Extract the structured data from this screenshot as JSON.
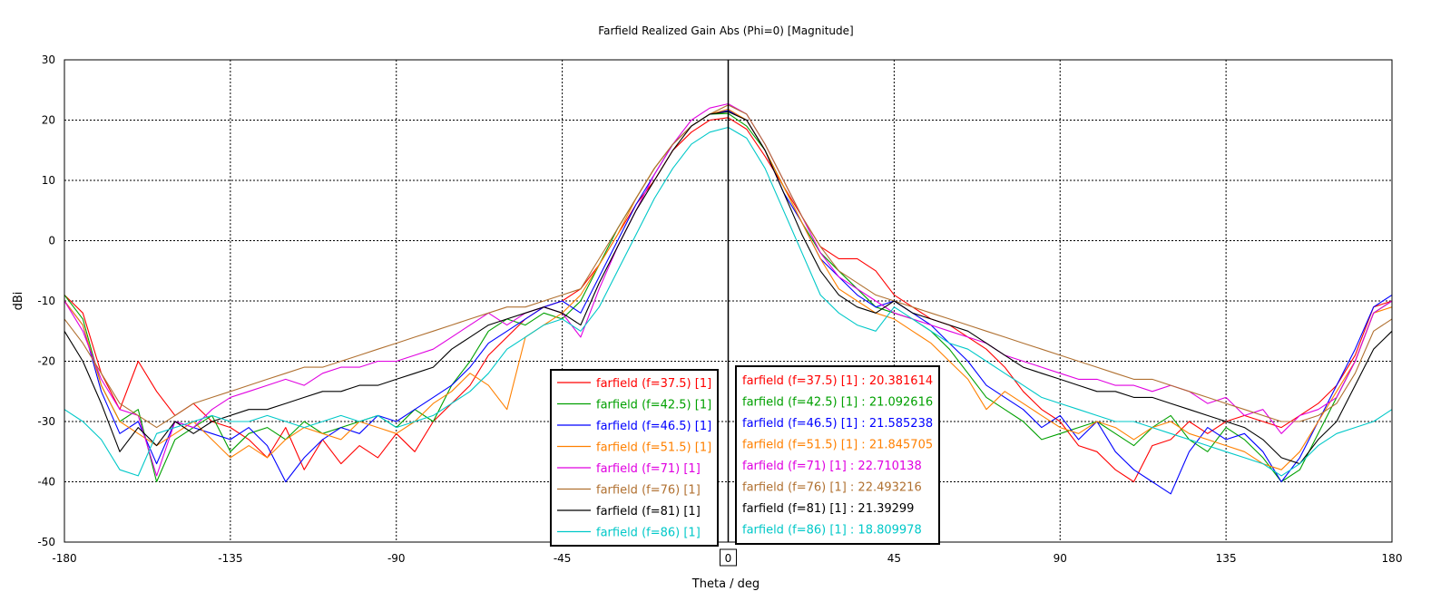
{
  "chart_data": {
    "type": "line",
    "title": "Farfield Realized Gain Abs (Phi=0) [Magnitude]",
    "xlabel": "Theta / deg",
    "ylabel": "dBi",
    "xlim": [
      -180,
      180
    ],
    "ylim": [
      -50,
      30
    ],
    "xticks": [
      -180,
      -135,
      -90,
      -45,
      0,
      45,
      90,
      135,
      180
    ],
    "yticks": [
      -50,
      -40,
      -30,
      -20,
      -10,
      0,
      10,
      20,
      30
    ],
    "xtick_labels": [
      "-180",
      "-135",
      "-90",
      "-45",
      "0",
      "45",
      "90",
      "135",
      "180"
    ],
    "ytick_labels": [
      "-50",
      "-40",
      "-30",
      "-20",
      "-10",
      "0",
      "10",
      "20",
      "30"
    ],
    "highlighted_x": 0,
    "grid": true,
    "legend_placement": "bottom-center",
    "series": [
      {
        "name": "farfield (f=37.5) [1]",
        "marker_label": "farfield (f=37.5) [1] : 20.381614",
        "color": "#ff0000",
        "x": [
          -180,
          -175,
          -170,
          -165,
          -160,
          -155,
          -150,
          -145,
          -140,
          -135,
          -130,
          -125,
          -120,
          -115,
          -110,
          -105,
          -100,
          -95,
          -90,
          -85,
          -80,
          -75,
          -70,
          -65,
          -60,
          -55,
          -50,
          -45,
          -40,
          -35,
          -30,
          -25,
          -20,
          -15,
          -10,
          -5,
          0,
          5,
          10,
          15,
          20,
          25,
          30,
          35,
          40,
          45,
          50,
          55,
          60,
          65,
          70,
          75,
          80,
          85,
          90,
          95,
          100,
          105,
          110,
          115,
          120,
          125,
          130,
          135,
          140,
          145,
          150,
          155,
          160,
          165,
          170,
          175,
          180
        ],
        "y": [
          -9,
          -12,
          -22,
          -28,
          -20,
          -25,
          -29,
          -27,
          -30,
          -31,
          -33,
          -36,
          -31,
          -38,
          -33,
          -37,
          -34,
          -36,
          -32,
          -35,
          -30,
          -27,
          -24,
          -19,
          -16,
          -13,
          -11,
          -10,
          -8,
          -4,
          1,
          6,
          10,
          15,
          18,
          20,
          20.4,
          18.5,
          14,
          9,
          4,
          -1,
          -3,
          -3,
          -5,
          -9,
          -11,
          -13,
          -14,
          -16,
          -18,
          -21,
          -25,
          -28,
          -30,
          -34,
          -35,
          -38,
          -40,
          -34,
          -33,
          -30,
          -32,
          -30,
          -29,
          -30,
          -31,
          -29,
          -27,
          -24,
          -19,
          -11,
          -10
        ]
      },
      {
        "name": "farfield (f=42.5) [1]",
        "marker_label": "farfield (f=42.5) [1] : 21.092616",
        "color": "#00a000",
        "x": [
          -180,
          -175,
          -170,
          -165,
          -160,
          -155,
          -150,
          -145,
          -140,
          -135,
          -130,
          -125,
          -120,
          -115,
          -110,
          -105,
          -100,
          -95,
          -90,
          -85,
          -80,
          -75,
          -70,
          -65,
          -60,
          -55,
          -50,
          -45,
          -40,
          -35,
          -30,
          -25,
          -20,
          -15,
          -10,
          -5,
          0,
          5,
          10,
          15,
          20,
          25,
          30,
          35,
          40,
          45,
          50,
          55,
          60,
          65,
          70,
          75,
          80,
          85,
          90,
          95,
          100,
          105,
          110,
          115,
          120,
          125,
          130,
          135,
          140,
          145,
          150,
          155,
          160,
          165,
          170,
          175,
          180
        ],
        "y": [
          -9,
          -13,
          -24,
          -30,
          -28,
          -40,
          -33,
          -31,
          -29,
          -35,
          -32,
          -31,
          -33,
          -30,
          -32,
          -31,
          -30,
          -29,
          -31,
          -28,
          -30,
          -24,
          -20,
          -15,
          -13,
          -14,
          -12,
          -13,
          -10,
          -4,
          2,
          7,
          12,
          16,
          19,
          21,
          21.1,
          19,
          15,
          9,
          3,
          -2,
          -5,
          -8,
          -11,
          -12,
          -13,
          -15,
          -18,
          -22,
          -26,
          -28,
          -30,
          -33,
          -32,
          -31,
          -30,
          -32,
          -34,
          -31,
          -29,
          -33,
          -35,
          -31,
          -33,
          -36,
          -40,
          -38,
          -32,
          -26,
          -20,
          -12,
          -10
        ]
      },
      {
        "name": "farfield (f=46.5) [1]",
        "marker_label": "farfield (f=46.5) [1] : 21.585238",
        "color": "#0000ff",
        "x": [
          -180,
          -175,
          -170,
          -165,
          -160,
          -155,
          -150,
          -145,
          -140,
          -135,
          -130,
          -125,
          -120,
          -115,
          -110,
          -105,
          -100,
          -95,
          -90,
          -85,
          -80,
          -75,
          -70,
          -65,
          -60,
          -55,
          -50,
          -45,
          -40,
          -35,
          -30,
          -25,
          -20,
          -15,
          -10,
          -5,
          0,
          5,
          10,
          15,
          20,
          25,
          30,
          35,
          40,
          45,
          50,
          55,
          60,
          65,
          70,
          75,
          80,
          85,
          90,
          95,
          100,
          105,
          110,
          115,
          120,
          125,
          130,
          135,
          140,
          145,
          150,
          155,
          160,
          165,
          170,
          175,
          180
        ],
        "y": [
          -10,
          -14,
          -25,
          -32,
          -30,
          -37,
          -30,
          -31,
          -32,
          -33,
          -31,
          -34,
          -40,
          -36,
          -33,
          -31,
          -32,
          -29,
          -30,
          -28,
          -26,
          -24,
          -21,
          -17,
          -15,
          -13,
          -11,
          -10,
          -12,
          -6,
          0,
          6,
          11,
          16,
          19,
          21,
          21.6,
          20,
          15,
          8,
          3,
          -3,
          -6,
          -9,
          -11,
          -10,
          -12,
          -14,
          -17,
          -20,
          -24,
          -26,
          -28,
          -31,
          -29,
          -33,
          -30,
          -35,
          -38,
          -40,
          -42,
          -35,
          -31,
          -33,
          -32,
          -35,
          -40,
          -36,
          -30,
          -24,
          -18,
          -11,
          -9
        ]
      },
      {
        "name": "farfield (f=51.5) [1]",
        "marker_label": "farfield (f=51.5) [1] : 21.845705",
        "color": "#ff8000",
        "x": [
          -180,
          -175,
          -170,
          -165,
          -160,
          -155,
          -150,
          -145,
          -140,
          -135,
          -130,
          -125,
          -120,
          -115,
          -110,
          -105,
          -100,
          -95,
          -90,
          -85,
          -80,
          -75,
          -70,
          -65,
          -60,
          -55,
          -50,
          -45,
          -40,
          -35,
          -30,
          -25,
          -20,
          -15,
          -10,
          -5,
          0,
          5,
          10,
          15,
          20,
          25,
          30,
          35,
          40,
          45,
          50,
          55,
          60,
          65,
          70,
          75,
          80,
          85,
          90,
          95,
          100,
          105,
          110,
          115,
          120,
          125,
          130,
          135,
          140,
          145,
          150,
          155,
          160,
          165,
          170,
          175,
          180
        ],
        "y": [
          -10,
          -14,
          -24,
          -30,
          -32,
          -34,
          -32,
          -30,
          -33,
          -36,
          -34,
          -36,
          -33,
          -31,
          -32,
          -33,
          -30,
          -31,
          -32,
          -30,
          -27,
          -25,
          -22,
          -24,
          -28,
          -16,
          -14,
          -12,
          -9,
          -4,
          1,
          7,
          12,
          16,
          19,
          21,
          21.8,
          20,
          15,
          9,
          3,
          -3,
          -8,
          -10,
          -12,
          -13,
          -15,
          -17,
          -20,
          -23,
          -28,
          -25,
          -27,
          -29,
          -31,
          -32,
          -30,
          -31,
          -33,
          -31,
          -30,
          -32,
          -33,
          -34,
          -35,
          -37,
          -38,
          -35,
          -30,
          -25,
          -20,
          -12,
          -11
        ]
      },
      {
        "name": "farfield (f=71) [1]",
        "marker_label": "farfield (f=71) [1] : 22.710138",
        "color": "#e000e0",
        "x": [
          -180,
          -175,
          -170,
          -165,
          -160,
          -155,
          -150,
          -145,
          -140,
          -135,
          -130,
          -125,
          -120,
          -115,
          -110,
          -105,
          -100,
          -95,
          -90,
          -85,
          -80,
          -75,
          -70,
          -65,
          -60,
          -55,
          -50,
          -45,
          -40,
          -35,
          -30,
          -25,
          -20,
          -15,
          -10,
          -5,
          0,
          5,
          10,
          15,
          20,
          25,
          30,
          35,
          40,
          45,
          50,
          55,
          60,
          65,
          70,
          75,
          80,
          85,
          90,
          95,
          100,
          105,
          110,
          115,
          120,
          125,
          130,
          135,
          140,
          145,
          150,
          155,
          160,
          165,
          170,
          175,
          180
        ],
        "y": [
          -10,
          -15,
          -23,
          -28,
          -29,
          -39,
          -30,
          -31,
          -28,
          -26,
          -25,
          -24,
          -23,
          -24,
          -22,
          -21,
          -21,
          -20,
          -20,
          -19,
          -18,
          -16,
          -14,
          -12,
          -14,
          -12,
          -11,
          -12,
          -16,
          -8,
          -1,
          5,
          11,
          16,
          20,
          22,
          22.7,
          21,
          16,
          10,
          4,
          -2,
          -6,
          -8,
          -10,
          -12,
          -13,
          -14,
          -15,
          -16,
          -17,
          -19,
          -20,
          -21,
          -22,
          -23,
          -23,
          -24,
          -24,
          -25,
          -24,
          -25,
          -27,
          -26,
          -29,
          -28,
          -32,
          -29,
          -28,
          -26,
          -20,
          -12,
          -10
        ]
      },
      {
        "name": "farfield (f=76) [1]",
        "marker_label": "farfield (f=76) [1] : 22.493216",
        "color": "#b07030",
        "x": [
          -180,
          -175,
          -170,
          -165,
          -160,
          -155,
          -150,
          -145,
          -140,
          -135,
          -130,
          -125,
          -120,
          -115,
          -110,
          -105,
          -100,
          -95,
          -90,
          -85,
          -80,
          -75,
          -70,
          -65,
          -60,
          -55,
          -50,
          -45,
          -40,
          -35,
          -30,
          -25,
          -20,
          -15,
          -10,
          -5,
          0,
          5,
          10,
          15,
          20,
          25,
          30,
          35,
          40,
          45,
          50,
          55,
          60,
          65,
          70,
          75,
          80,
          85,
          90,
          95,
          100,
          105,
          110,
          115,
          120,
          125,
          130,
          135,
          140,
          145,
          150,
          155,
          160,
          165,
          170,
          175,
          180
        ],
        "y": [
          -13,
          -17,
          -22,
          -27,
          -29,
          -31,
          -29,
          -27,
          -26,
          -25,
          -24,
          -23,
          -22,
          -21,
          -21,
          -20,
          -19,
          -18,
          -17,
          -16,
          -15,
          -14,
          -13,
          -12,
          -11,
          -11,
          -10,
          -9,
          -8,
          -3,
          2,
          7,
          12,
          16,
          19,
          21,
          22.5,
          21,
          16,
          10,
          4,
          -1,
          -5,
          -7,
          -9,
          -10,
          -11,
          -12,
          -13,
          -14,
          -15,
          -16,
          -17,
          -18,
          -19,
          -20,
          -21,
          -22,
          -23,
          -23,
          -24,
          -25,
          -26,
          -27,
          -28,
          -29,
          -30,
          -30,
          -29,
          -27,
          -22,
          -15,
          -13
        ]
      },
      {
        "name": "farfield (f=81) [1]",
        "marker_label": "farfield (f=81) [1] : 21.39299",
        "color": "#000000",
        "x": [
          -180,
          -175,
          -170,
          -165,
          -160,
          -155,
          -150,
          -145,
          -140,
          -135,
          -130,
          -125,
          -120,
          -115,
          -110,
          -105,
          -100,
          -95,
          -90,
          -85,
          -80,
          -75,
          -70,
          -65,
          -60,
          -55,
          -50,
          -45,
          -40,
          -35,
          -30,
          -25,
          -20,
          -15,
          -10,
          -5,
          0,
          5,
          10,
          15,
          20,
          25,
          30,
          35,
          40,
          45,
          50,
          55,
          60,
          65,
          70,
          75,
          80,
          85,
          90,
          95,
          100,
          105,
          110,
          115,
          120,
          125,
          130,
          135,
          140,
          145,
          150,
          155,
          160,
          165,
          170,
          175,
          180
        ],
        "y": [
          -15,
          -20,
          -27,
          -35,
          -31,
          -34,
          -30,
          -32,
          -30,
          -29,
          -28,
          -28,
          -27,
          -26,
          -25,
          -25,
          -24,
          -24,
          -23,
          -22,
          -21,
          -18,
          -16,
          -14,
          -13,
          -12,
          -11,
          -12,
          -14,
          -7,
          -1,
          5,
          10,
          15,
          19,
          21,
          21.4,
          20,
          15,
          8,
          1,
          -5,
          -9,
          -11,
          -12,
          -10,
          -12,
          -13,
          -14,
          -15,
          -17,
          -19,
          -21,
          -22,
          -23,
          -24,
          -25,
          -25,
          -26,
          -26,
          -27,
          -28,
          -29,
          -30,
          -31,
          -33,
          -36,
          -37,
          -33,
          -30,
          -24,
          -18,
          -15
        ]
      },
      {
        "name": "farfield (f=86) [1]",
        "marker_label": "farfield (f=86) [1] : 18.809978",
        "color": "#00c8c8",
        "x": [
          -180,
          -175,
          -170,
          -165,
          -160,
          -155,
          -150,
          -145,
          -140,
          -135,
          -130,
          -125,
          -120,
          -115,
          -110,
          -105,
          -100,
          -95,
          -90,
          -85,
          -80,
          -75,
          -70,
          -65,
          -60,
          -55,
          -50,
          -45,
          -40,
          -35,
          -30,
          -25,
          -20,
          -15,
          -10,
          -5,
          0,
          5,
          10,
          15,
          20,
          25,
          30,
          35,
          40,
          45,
          50,
          55,
          60,
          65,
          70,
          75,
          80,
          85,
          90,
          95,
          100,
          105,
          110,
          115,
          120,
          125,
          130,
          135,
          140,
          145,
          150,
          155,
          160,
          165,
          170,
          175,
          180
        ],
        "y": [
          -28,
          -30,
          -33,
          -38,
          -39,
          -32,
          -31,
          -30,
          -29,
          -30,
          -30,
          -29,
          -30,
          -31,
          -30,
          -29,
          -30,
          -29,
          -31,
          -30,
          -29,
          -27,
          -25,
          -22,
          -18,
          -16,
          -14,
          -13,
          -15,
          -11,
          -5,
          1,
          7,
          12,
          16,
          18,
          18.8,
          17,
          12,
          5,
          -2,
          -9,
          -12,
          -14,
          -15,
          -11,
          -13,
          -15,
          -17,
          -18,
          -20,
          -22,
          -24,
          -26,
          -27,
          -28,
          -29,
          -30,
          -30,
          -31,
          -32,
          -33,
          -34,
          -35,
          -36,
          -37,
          -39,
          -37,
          -34,
          -32,
          -31,
          -30,
          -28
        ]
      }
    ]
  }
}
